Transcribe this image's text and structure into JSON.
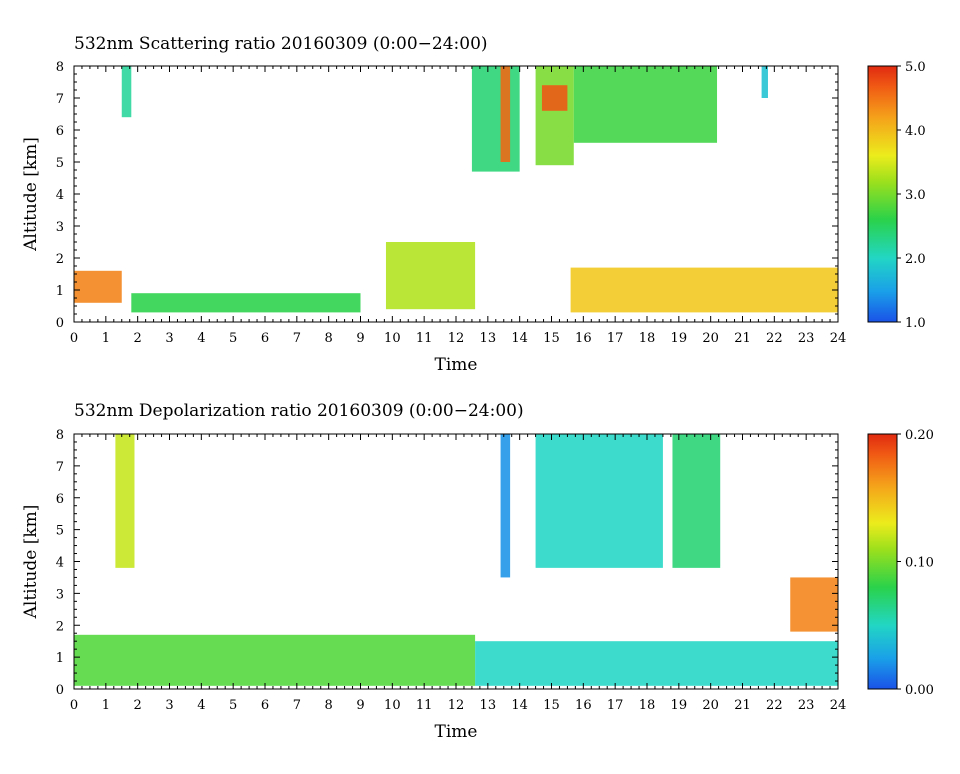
{
  "chart_data": [
    {
      "type": "heatmap",
      "title": "532nm Scattering ratio  20160309 (0:00−24:00)",
      "xlabel": "Time",
      "ylabel": "Altitude [km]",
      "xlim": [
        0,
        24
      ],
      "ylim": [
        0,
        8
      ],
      "xticks": [
        "0",
        "1",
        "2",
        "3",
        "4",
        "5",
        "6",
        "7",
        "8",
        "9",
        "10",
        "11",
        "12",
        "13",
        "14",
        "15",
        "16",
        "17",
        "18",
        "19",
        "20",
        "21",
        "22",
        "23",
        "24"
      ],
      "yticks": [
        "0",
        "1",
        "2",
        "3",
        "4",
        "5",
        "6",
        "7",
        "8"
      ],
      "colorbar": {
        "min": 1.0,
        "max": 5.0,
        "ticks": [
          "1.0",
          "2.0",
          "3.0",
          "4.0",
          "5.0"
        ]
      },
      "features": [
        {
          "t0": 0.0,
          "t1": 1.5,
          "z0": 0.6,
          "z1": 1.6,
          "v": 4.4
        },
        {
          "t0": 1.5,
          "t1": 1.8,
          "z0": 6.4,
          "z1": 8.0,
          "v": 2.2
        },
        {
          "t0": 1.8,
          "t1": 9.0,
          "z0": 0.3,
          "z1": 0.9,
          "v": 2.6
        },
        {
          "t0": 9.8,
          "t1": 12.6,
          "z0": 0.4,
          "z1": 2.5,
          "v": 3.3
        },
        {
          "t0": 12.5,
          "t1": 14.0,
          "z0": 4.7,
          "z1": 8.0,
          "v": 2.4
        },
        {
          "t0": 13.4,
          "t1": 13.7,
          "z0": 5.0,
          "z1": 8.0,
          "v": 4.6
        },
        {
          "t0": 14.5,
          "t1": 15.7,
          "z0": 4.9,
          "z1": 8.0,
          "v": 3.0
        },
        {
          "t0": 14.7,
          "t1": 15.5,
          "z0": 6.6,
          "z1": 7.4,
          "v": 4.7
        },
        {
          "t0": 15.7,
          "t1": 20.2,
          "z0": 5.6,
          "z1": 8.0,
          "v": 2.7
        },
        {
          "t0": 15.6,
          "t1": 24.0,
          "z0": 0.3,
          "z1": 1.7,
          "v": 3.9
        },
        {
          "t0": 21.6,
          "t1": 21.8,
          "z0": 7.0,
          "z1": 8.0,
          "v": 1.8
        }
      ]
    },
    {
      "type": "heatmap",
      "title": "532nm Depolarization ratio  20160309 (0:00−24:00)",
      "xlabel": "Time",
      "ylabel": "Altitude [km]",
      "xlim": [
        0,
        24
      ],
      "ylim": [
        0,
        8
      ],
      "xticks": [
        "0",
        "1",
        "2",
        "3",
        "4",
        "5",
        "6",
        "7",
        "8",
        "9",
        "10",
        "11",
        "12",
        "13",
        "14",
        "15",
        "16",
        "17",
        "18",
        "19",
        "20",
        "21",
        "22",
        "23",
        "24"
      ],
      "yticks": [
        "0",
        "1",
        "2",
        "3",
        "4",
        "5",
        "6",
        "7",
        "8"
      ],
      "colorbar": {
        "min": 0.0,
        "max": 0.2,
        "ticks": [
          "0.00",
          "0.10",
          "0.20"
        ]
      },
      "features": [
        {
          "t0": 0.0,
          "t1": 12.6,
          "z0": 0.1,
          "z1": 1.7,
          "v": 0.09
        },
        {
          "t0": 1.3,
          "t1": 1.9,
          "z0": 3.8,
          "z1": 8.0,
          "v": 0.12
        },
        {
          "t0": 12.6,
          "t1": 24.0,
          "z0": 0.1,
          "z1": 1.5,
          "v": 0.05
        },
        {
          "t0": 13.4,
          "t1": 13.7,
          "z0": 3.5,
          "z1": 8.0,
          "v": 0.02
        },
        {
          "t0": 14.5,
          "t1": 18.5,
          "z0": 3.8,
          "z1": 8.0,
          "v": 0.05
        },
        {
          "t0": 18.8,
          "t1": 20.3,
          "z0": 3.8,
          "z1": 8.0,
          "v": 0.07
        },
        {
          "t0": 22.5,
          "t1": 24.0,
          "z0": 1.8,
          "z1": 3.5,
          "v": 0.17
        }
      ]
    }
  ]
}
